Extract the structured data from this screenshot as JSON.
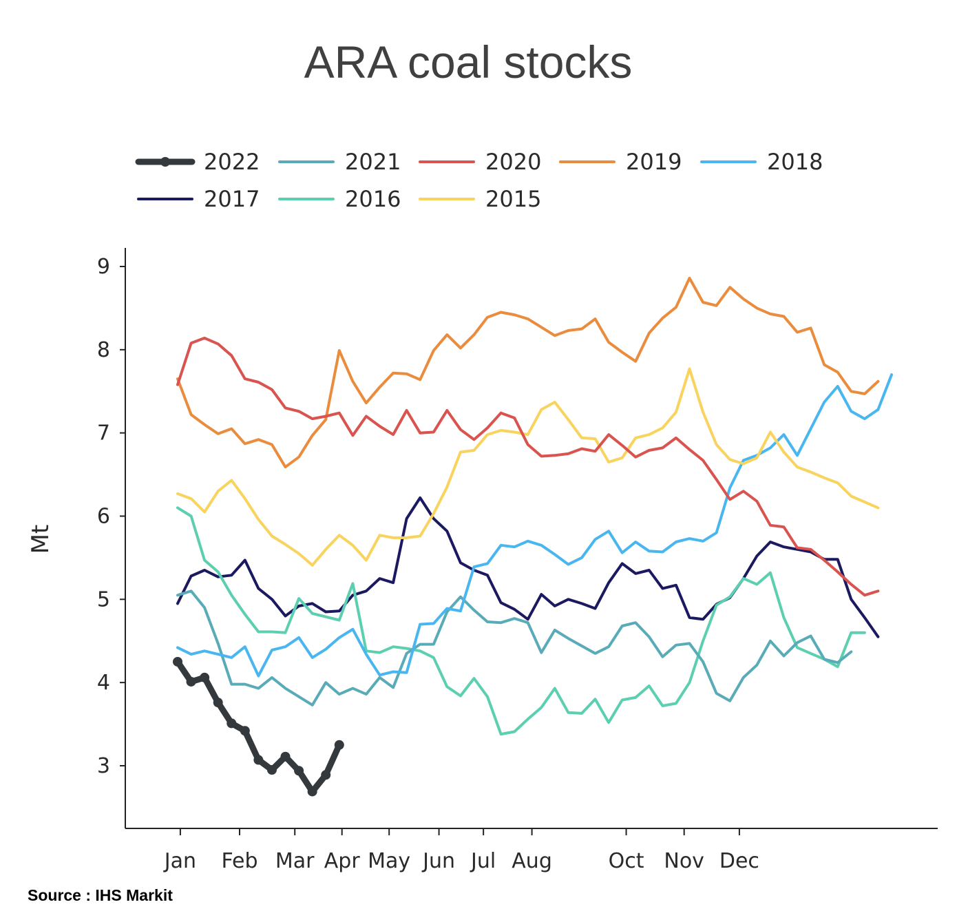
{
  "chart_data": {
    "type": "line",
    "title": "ARA coal stocks",
    "xlabel": "",
    "ylabel": "Mt",
    "ylim": [
      2.2,
      9.2
    ],
    "yticks": [
      "3",
      "4",
      "5",
      "6",
      "7",
      "8",
      "9"
    ],
    "xlim": [
      0,
      53
    ],
    "month_ticks": [
      {
        "label": "Jan",
        "week": 0.2
      },
      {
        "label": "Feb",
        "week": 4.6
      },
      {
        "label": "Mar",
        "week": 8.7
      },
      {
        "label": "Apr",
        "week": 12.2
      },
      {
        "label": "May",
        "week": 15.7
      },
      {
        "label": "Jun",
        "week": 19.4
      },
      {
        "label": "Jul",
        "week": 22.7
      },
      {
        "label": "Aug",
        "week": 26.3
      },
      {
        "label": "Oct",
        "week": 33.3
      },
      {
        "label": "Nov",
        "week": 37.6
      },
      {
        "label": "Dec",
        "week": 41.7
      }
    ],
    "series": [
      {
        "name": "2017",
        "color": "#1b1960",
        "width": 4,
        "values": [
          4.95,
          5.28,
          5.35,
          5.27,
          5.29,
          5.47,
          5.13,
          5.0,
          4.8,
          4.92,
          4.95,
          4.85,
          4.86,
          5.05,
          5.1,
          5.25,
          5.2,
          5.97,
          6.22,
          5.97,
          5.82,
          5.44,
          5.35,
          5.29,
          4.96,
          4.88,
          4.76,
          5.06,
          4.92,
          5.0,
          4.95,
          4.89,
          5.2,
          5.43,
          5.31,
          5.35,
          5.13,
          5.17,
          4.78,
          4.76,
          4.94,
          5.02,
          5.25,
          5.52,
          5.69,
          5.63,
          5.6,
          5.57,
          5.48,
          5.48,
          5.0,
          4.78,
          4.55
        ]
      },
      {
        "name": "2016",
        "color": "#5dcfb1",
        "width": 4,
        "values": [
          6.1,
          6.0,
          5.47,
          5.33,
          5.05,
          4.82,
          4.61,
          4.61,
          4.6,
          5.01,
          4.83,
          4.79,
          4.75,
          5.19,
          4.38,
          4.36,
          4.43,
          4.41,
          4.38,
          4.3,
          3.95,
          3.84,
          4.05,
          3.83,
          3.38,
          3.41,
          3.56,
          3.7,
          3.93,
          3.64,
          3.63,
          3.8,
          3.52,
          3.79,
          3.82,
          3.96,
          3.72,
          3.75,
          4.0,
          4.5,
          4.93,
          5.03,
          5.25,
          5.18,
          5.32,
          4.78,
          4.42,
          4.35,
          4.28,
          4.19,
          4.6,
          4.6
        ]
      },
      {
        "name": "2021",
        "color": "#5aabb8",
        "width": 4,
        "values": [
          5.05,
          5.1,
          4.9,
          4.47,
          3.98,
          3.98,
          3.93,
          4.06,
          3.93,
          3.83,
          3.73,
          4.0,
          3.86,
          3.93,
          3.86,
          4.06,
          3.94,
          4.35,
          4.46,
          4.46,
          4.85,
          5.03,
          4.87,
          4.73,
          4.72,
          4.77,
          4.72,
          4.36,
          4.63,
          4.53,
          4.44,
          4.35,
          4.43,
          4.68,
          4.72,
          4.55,
          4.31,
          4.45,
          4.47,
          4.25,
          3.87,
          3.78,
          4.06,
          4.21,
          4.5,
          4.32,
          4.48,
          4.56,
          4.28,
          4.24,
          4.37
        ]
      },
      {
        "name": "2018",
        "color": "#49b6ef",
        "width": 4,
        "values": [
          4.42,
          4.34,
          4.38,
          4.34,
          4.3,
          4.43,
          4.08,
          4.39,
          4.43,
          4.54,
          4.3,
          4.4,
          4.54,
          4.64,
          4.34,
          4.09,
          4.13,
          4.12,
          4.7,
          4.71,
          4.89,
          4.86,
          5.39,
          5.43,
          5.65,
          5.63,
          5.7,
          5.65,
          5.54,
          5.42,
          5.5,
          5.72,
          5.82,
          5.56,
          5.69,
          5.58,
          5.57,
          5.69,
          5.73,
          5.7,
          5.8,
          6.34,
          6.67,
          6.73,
          6.82,
          6.98,
          6.73,
          7.05,
          7.37,
          7.56,
          7.26,
          7.17,
          7.28,
          7.7
        ]
      },
      {
        "name": "2015",
        "color": "#f8d35e",
        "width": 4,
        "values": [
          6.27,
          6.21,
          6.05,
          6.3,
          6.43,
          6.21,
          5.96,
          5.76,
          5.66,
          5.55,
          5.41,
          5.6,
          5.77,
          5.65,
          5.47,
          5.77,
          5.74,
          5.74,
          5.76,
          6.03,
          6.35,
          6.77,
          6.79,
          6.98,
          7.03,
          7.01,
          6.98,
          7.28,
          7.37,
          7.16,
          6.94,
          6.93,
          6.65,
          6.7,
          6.94,
          6.98,
          7.06,
          7.25,
          7.77,
          7.25,
          6.86,
          6.68,
          6.63,
          6.7,
          7.01,
          6.77,
          6.59,
          6.53,
          6.46,
          6.4,
          6.24,
          6.17,
          6.1
        ]
      },
      {
        "name": "2019",
        "color": "#ea8c3d",
        "width": 4,
        "values": [
          7.65,
          7.22,
          7.1,
          6.99,
          7.05,
          6.87,
          6.92,
          6.86,
          6.59,
          6.71,
          6.97,
          7.16,
          7.99,
          7.62,
          7.36,
          7.55,
          7.72,
          7.71,
          7.64,
          7.99,
          8.18,
          8.02,
          8.18,
          8.39,
          8.45,
          8.42,
          8.37,
          8.27,
          8.17,
          8.23,
          8.25,
          8.37,
          8.09,
          7.97,
          7.86,
          8.2,
          8.38,
          8.51,
          8.86,
          8.57,
          8.53,
          8.75,
          8.61,
          8.5,
          8.43,
          8.4,
          8.21,
          8.26,
          7.82,
          7.73,
          7.5,
          7.47,
          7.62
        ]
      },
      {
        "name": "2020",
        "color": "#d9534f",
        "width": 4,
        "values": [
          7.58,
          8.08,
          8.14,
          8.07,
          7.93,
          7.65,
          7.61,
          7.52,
          7.3,
          7.26,
          7.17,
          7.2,
          7.24,
          6.97,
          7.2,
          7.08,
          6.98,
          7.27,
          7.0,
          7.01,
          7.27,
          7.04,
          6.92,
          7.06,
          7.24,
          7.18,
          6.86,
          6.72,
          6.73,
          6.75,
          6.81,
          6.78,
          6.98,
          6.85,
          6.71,
          6.79,
          6.82,
          6.94,
          6.8,
          6.67,
          6.44,
          6.2,
          6.3,
          6.18,
          5.89,
          5.87,
          5.62,
          5.6,
          5.47,
          5.33,
          5.18,
          5.05,
          5.1
        ]
      },
      {
        "name": "2022",
        "color": "#33393c",
        "width": 9,
        "marker": true,
        "values": [
          4.25,
          4.01,
          4.06,
          3.76,
          3.51,
          3.42,
          3.07,
          2.95,
          3.11,
          2.94,
          2.69,
          2.89,
          3.25
        ]
      }
    ],
    "legend": [
      {
        "name": "2022",
        "color": "#33393c",
        "width": 9,
        "marker": true
      },
      {
        "name": "2021",
        "color": "#5aabb8",
        "width": 4
      },
      {
        "name": "2020",
        "color": "#d9534f",
        "width": 4
      },
      {
        "name": "2019",
        "color": "#ea8c3d",
        "width": 4
      },
      {
        "name": "2018",
        "color": "#49b6ef",
        "width": 4
      },
      {
        "name": "2017",
        "color": "#1b1960",
        "width": 4
      },
      {
        "name": "2016",
        "color": "#5dcfb1",
        "width": 4
      },
      {
        "name": "2015",
        "color": "#f8d35e",
        "width": 4
      }
    ],
    "legend_position": "top-left"
  },
  "source": "Source : IHS Markit"
}
